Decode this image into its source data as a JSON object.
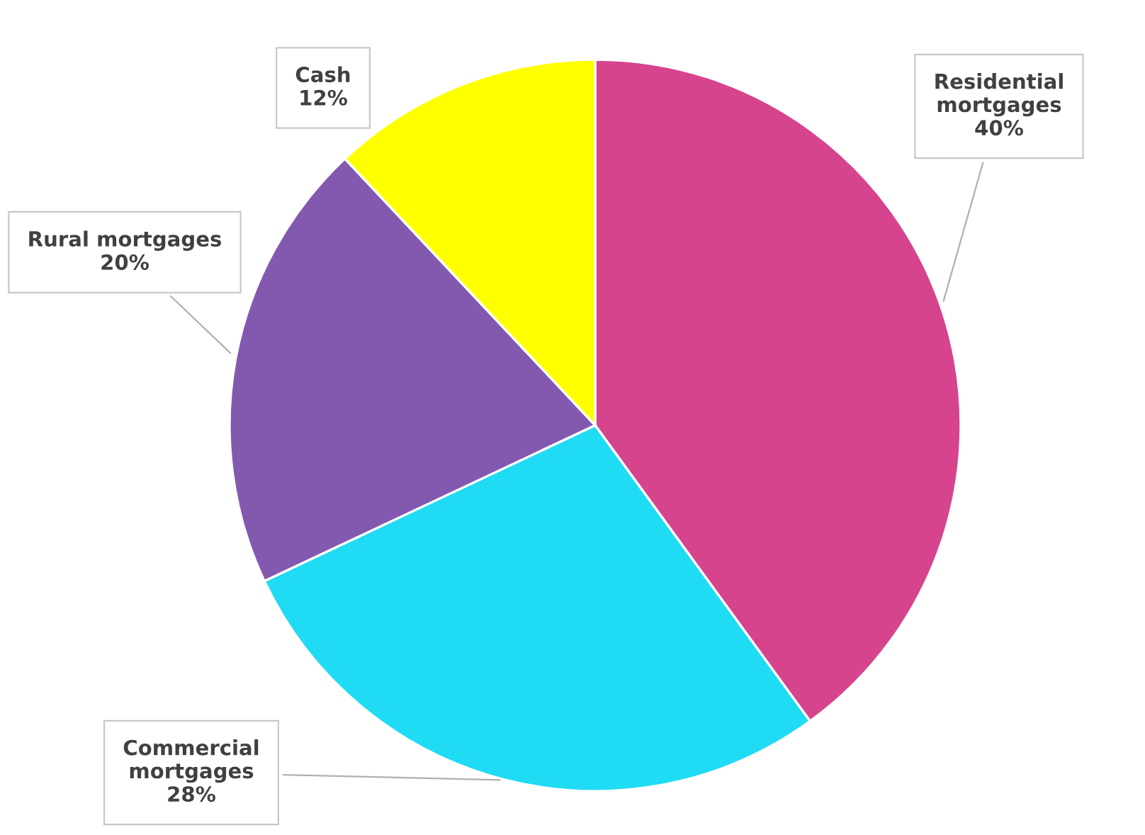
{
  "chart_data": {
    "type": "pie",
    "categories": [
      "Residential\nmortgages",
      "Commercial\nmortgages",
      "Rural mortgages",
      "Cash"
    ],
    "values": [
      40,
      28,
      20,
      12
    ],
    "colors": [
      "#d6448e",
      "#1fdbf4",
      "#8359b0",
      "#ffff00"
    ],
    "value_labels": [
      "40%",
      "28%",
      "20%",
      "12%"
    ]
  }
}
